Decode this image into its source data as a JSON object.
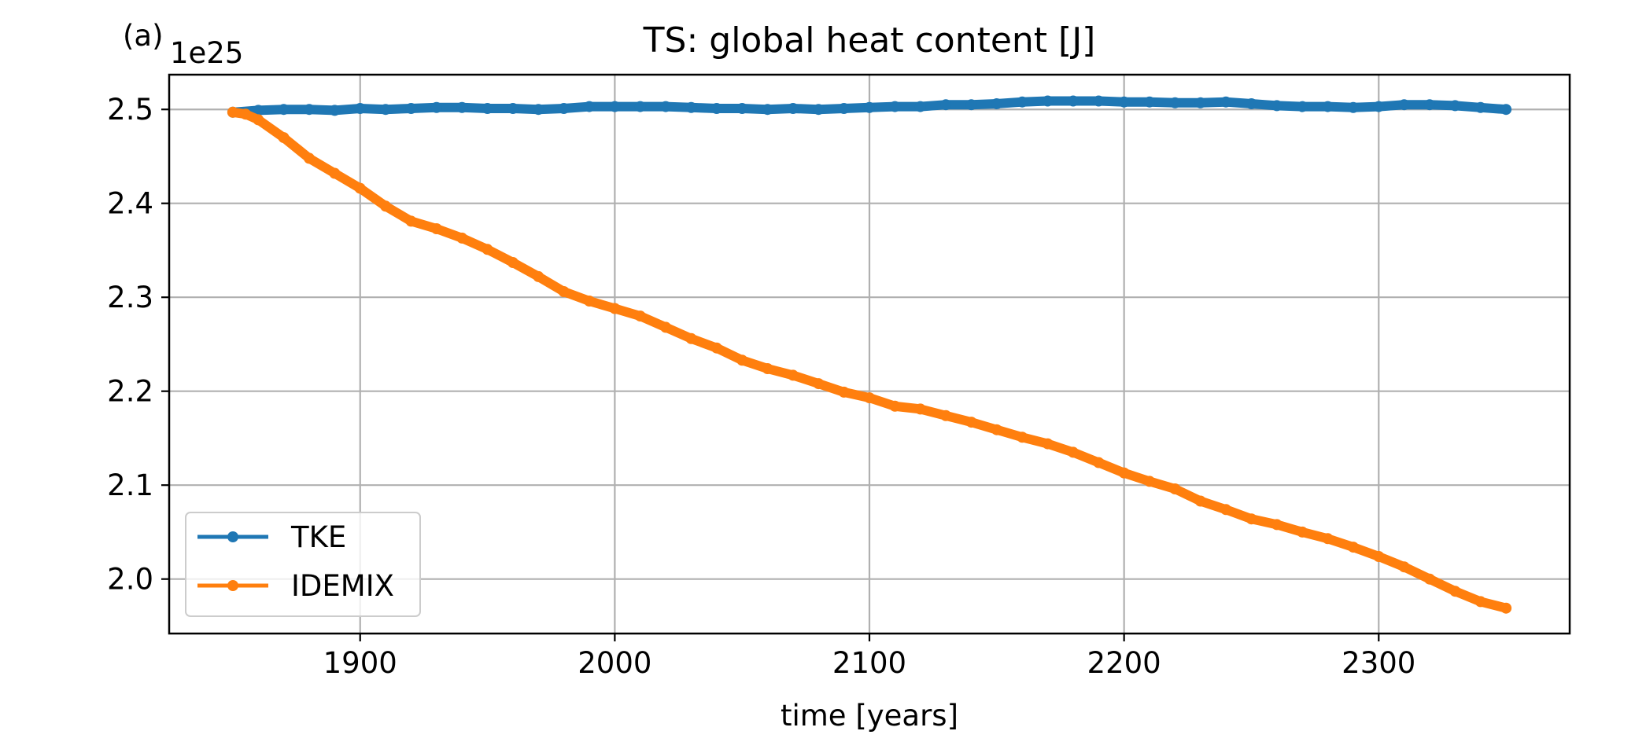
{
  "panel_label": "(a)",
  "chart_data": {
    "type": "line",
    "title": "TS: global heat content [J]",
    "xlabel": "time [years]",
    "ylabel": "",
    "y_offset_label": "1e25",
    "y_scale_factor": 1e+25,
    "xlim": [
      1825,
      2375
    ],
    "ylim": [
      1.942,
      2.537
    ],
    "xticks": [
      1900,
      2000,
      2100,
      2200,
      2300
    ],
    "xtick_labels": [
      "1900",
      "2000",
      "2100",
      "2200",
      "2300"
    ],
    "yticks": [
      2.0,
      2.1,
      2.2,
      2.3,
      2.4,
      2.5
    ],
    "ytick_labels": [
      "2.0",
      "2.1",
      "2.2",
      "2.3",
      "2.4",
      "2.5"
    ],
    "grid": true,
    "legend_position": "lower-left",
    "series": [
      {
        "name": "TKE",
        "color": "#1f77b4",
        "x": [
          1850,
          1860,
          1870,
          1880,
          1890,
          1900,
          1910,
          1920,
          1930,
          1940,
          1950,
          1960,
          1970,
          1980,
          1990,
          2000,
          2010,
          2020,
          2030,
          2040,
          2050,
          2060,
          2070,
          2080,
          2090,
          2100,
          2110,
          2120,
          2130,
          2140,
          2150,
          2160,
          2170,
          2180,
          2190,
          2200,
          2210,
          2220,
          2230,
          2240,
          2250,
          2260,
          2270,
          2280,
          2290,
          2300,
          2310,
          2320,
          2330,
          2340,
          2350
        ],
        "values": [
          2.497,
          2.499,
          2.5,
          2.5,
          2.499,
          2.501,
          2.5,
          2.501,
          2.502,
          2.502,
          2.501,
          2.501,
          2.5,
          2.501,
          2.503,
          2.503,
          2.503,
          2.503,
          2.502,
          2.501,
          2.501,
          2.5,
          2.501,
          2.5,
          2.501,
          2.502,
          2.503,
          2.503,
          2.505,
          2.505,
          2.506,
          2.508,
          2.509,
          2.509,
          2.509,
          2.508,
          2.508,
          2.507,
          2.507,
          2.508,
          2.506,
          2.504,
          2.503,
          2.503,
          2.502,
          2.503,
          2.505,
          2.505,
          2.504,
          2.502,
          2.5
        ]
      },
      {
        "name": "IDEMIX",
        "color": "#ff7f0e",
        "x": [
          1850,
          1855,
          1860,
          1870,
          1880,
          1890,
          1900,
          1910,
          1920,
          1930,
          1940,
          1950,
          1960,
          1970,
          1980,
          1990,
          2000,
          2010,
          2020,
          2030,
          2040,
          2050,
          2060,
          2070,
          2080,
          2090,
          2100,
          2110,
          2120,
          2130,
          2140,
          2150,
          2160,
          2170,
          2180,
          2190,
          2200,
          2210,
          2220,
          2230,
          2240,
          2250,
          2260,
          2270,
          2280,
          2290,
          2300,
          2310,
          2320,
          2330,
          2340,
          2350
        ],
        "values": [
          2.497,
          2.495,
          2.489,
          2.47,
          2.448,
          2.432,
          2.416,
          2.397,
          2.381,
          2.373,
          2.363,
          2.351,
          2.337,
          2.322,
          2.306,
          2.296,
          2.288,
          2.28,
          2.268,
          2.256,
          2.246,
          2.233,
          2.224,
          2.217,
          2.208,
          2.199,
          2.193,
          2.184,
          2.181,
          2.174,
          2.167,
          2.159,
          2.151,
          2.144,
          2.135,
          2.124,
          2.113,
          2.104,
          2.096,
          2.083,
          2.074,
          2.064,
          2.058,
          2.05,
          2.043,
          2.034,
          2.024,
          2.013,
          2.0,
          1.987,
          1.976,
          1.969
        ]
      }
    ]
  }
}
